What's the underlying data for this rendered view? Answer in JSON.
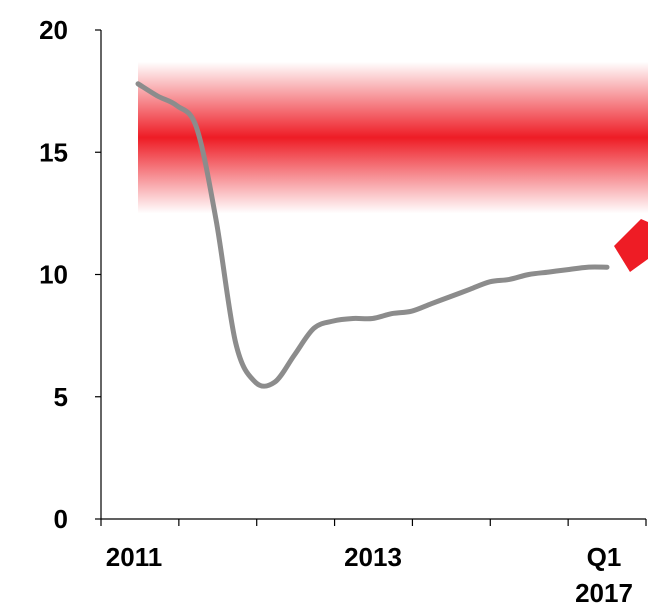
{
  "chart_data": {
    "type": "line",
    "title": "",
    "xlabel": "",
    "ylabel": "",
    "ylim": [
      0,
      20
    ],
    "yticks": [
      "0",
      "5",
      "10",
      "15",
      "20"
    ],
    "xticks": [
      "2011",
      "2013",
      "Q1 2017"
    ],
    "grid": false,
    "legend": "none",
    "colors": {
      "line": "#8c8c8c",
      "band": "#ee1c25",
      "arrow": "#ee1c25",
      "axis": "#000000"
    },
    "band": {
      "y_center": 15.6,
      "y_min": 12.5,
      "y_max": 18.7
    },
    "series": [
      {
        "x": [
          2011.0,
          2011.25,
          2011.5,
          2011.75,
          2012.0,
          2012.25,
          2012.5,
          2012.75,
          2013.0,
          2013.25,
          2013.5,
          2013.75,
          2014.0,
          2014.25,
          2014.5,
          2014.75,
          2015.0,
          2015.25,
          2015.5,
          2015.75,
          2016.0,
          2016.25,
          2016.5,
          2016.75,
          2017.0
        ],
        "values": [
          17.8,
          17.3,
          16.9,
          16.0,
          12.2,
          7.2,
          5.6,
          5.6,
          6.7,
          7.8,
          8.1,
          8.2,
          8.2,
          8.4,
          8.5,
          8.8,
          9.1,
          9.4,
          9.7,
          9.8,
          10.0,
          10.1,
          10.2,
          10.3,
          10.3
        ]
      }
    ]
  }
}
